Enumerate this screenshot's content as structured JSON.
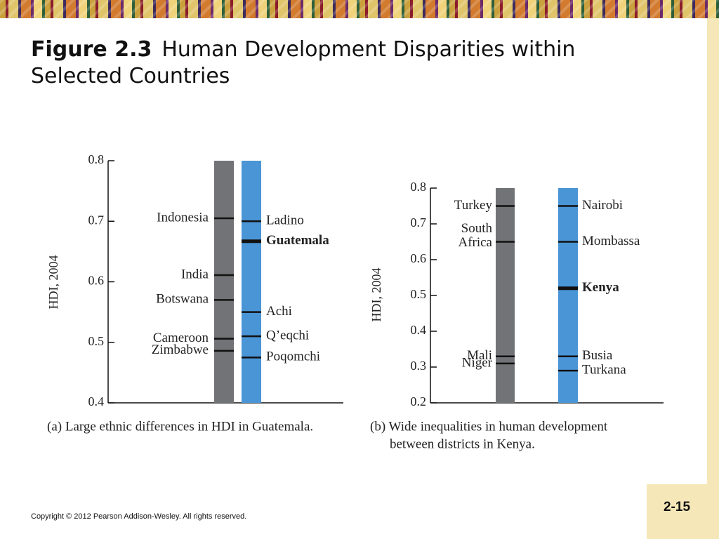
{
  "slide": {
    "title_label": "Figure 2.3",
    "title_text": "Human Development Disparities within Selected Countries",
    "copyright": "Copyright © 2012 Pearson Addison-Wesley. All rights reserved.",
    "page_number": "2-15"
  },
  "colors": {
    "country_bar": "#727376",
    "district_bar": "#4a95d6",
    "tick": "#111111",
    "text": "#222222"
  },
  "chart_data": [
    {
      "type": "bar",
      "caption": "(a) Large ethnic differences in HDI in Guatemala.",
      "ylabel": "HDI, 2004",
      "ylim": [
        0.4,
        0.8
      ],
      "yticks": [
        "0.8",
        "0.7",
        "0.6",
        "0.5",
        "0.4"
      ],
      "series": [
        {
          "markers": [
            {
              "label": "Indonesia",
              "value": 0.705
            },
            {
              "label": "India",
              "value": 0.611
            },
            {
              "label": "Botswana",
              "value": 0.57
            },
            {
              "label": "Cameroon",
              "value": 0.506
            },
            {
              "label": "Zimbabwe",
              "value": 0.486
            }
          ]
        },
        {
          "markers": [
            {
              "label": "Ladino",
              "value": 0.7
            },
            {
              "label": "Guatemala",
              "value": 0.667,
              "bold": true
            },
            {
              "label": "Achi",
              "value": 0.55
            },
            {
              "label": "Q’eqchi",
              "value": 0.51
            },
            {
              "label": "Poqomchi",
              "value": 0.475
            }
          ]
        }
      ]
    },
    {
      "type": "bar",
      "caption_lines": [
        "(b) Wide inequalities in human development",
        "between districts in Kenya."
      ],
      "ylabel": "HDI, 2004",
      "ylim": [
        0.2,
        0.8
      ],
      "yticks": [
        "0.8",
        "0.7",
        "0.6",
        "0.5",
        "0.4",
        "0.3",
        "0.2"
      ],
      "series": [
        {
          "markers": [
            {
              "label": "Turkey",
              "value": 0.75
            },
            {
              "label_lines": [
                "South",
                "Africa"
              ],
              "value": 0.65
            },
            {
              "label": "Mali",
              "value": 0.33
            },
            {
              "label": "Niger",
              "value": 0.31
            }
          ]
        },
        {
          "markers": [
            {
              "label": "Nairobi",
              "value": 0.75
            },
            {
              "label": "Mombassa",
              "value": 0.65
            },
            {
              "label": "Kenya",
              "value": 0.52,
              "bold": true
            },
            {
              "label": "Busia",
              "value": 0.33
            },
            {
              "label": "Turkana",
              "value": 0.29
            }
          ]
        }
      ]
    }
  ]
}
